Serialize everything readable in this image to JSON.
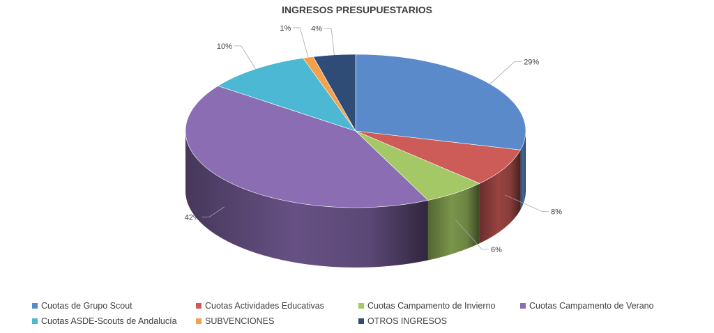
{
  "chart_data": {
    "type": "pie",
    "title": "INGRESOS PRESUPUESTARIOS",
    "three_d": true,
    "legend_position": "bottom",
    "slices": [
      {
        "name": "Cuotas de Grupo Scout",
        "value": 29,
        "label": "29%",
        "color": "#5B8ACB"
      },
      {
        "name": "Cuotas Actividades Educativas",
        "value": 8,
        "label": "8%",
        "color": "#CD5B57"
      },
      {
        "name": "Cuotas Campamento de Invierno",
        "value": 6,
        "label": "6%",
        "color": "#A4C865"
      },
      {
        "name": "Cuotas Campamento de Verano",
        "value": 42,
        "label": "42%",
        "color": "#8A6DB2"
      },
      {
        "name": "Cuotas ASDE-Scouts de Andalucía",
        "value": 10,
        "label": "10%",
        "color": "#4DB8D3"
      },
      {
        "name": "SUBVENCIONES",
        "value": 1,
        "label": "1%",
        "color": "#F5A04A"
      },
      {
        "name": "OTROS INGRESOS",
        "value": 4,
        "label": "4%",
        "color": "#2F4C76"
      }
    ]
  }
}
